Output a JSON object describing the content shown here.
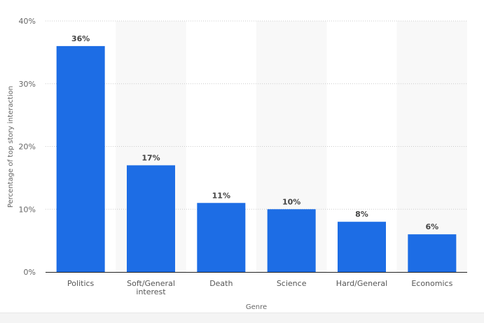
{
  "chart_data": {
    "type": "bar",
    "categories": [
      [
        "Politics"
      ],
      [
        "Soft/General",
        "interest"
      ],
      [
        "Death"
      ],
      [
        "Science"
      ],
      [
        "Hard/General"
      ],
      [
        "Economics"
      ]
    ],
    "values": [
      36,
      17,
      11,
      10,
      8,
      6
    ],
    "data_labels": [
      "36%",
      "17%",
      "11%",
      "10%",
      "8%",
      "6%"
    ],
    "xlabel": "Genre",
    "ylabel": "Percentage of top story interaction",
    "ylim": [
      0,
      40
    ],
    "yticks": [
      0,
      10,
      20,
      30,
      40
    ],
    "ytick_labels": [
      "0%",
      "10%",
      "20%",
      "30%",
      "40%"
    ],
    "grid": true,
    "alternating_bands": true,
    "colors": {
      "bar": "#1d6de5",
      "band": "#f8f8f8",
      "grid": "#cccccc",
      "axis": "#222222"
    }
  }
}
